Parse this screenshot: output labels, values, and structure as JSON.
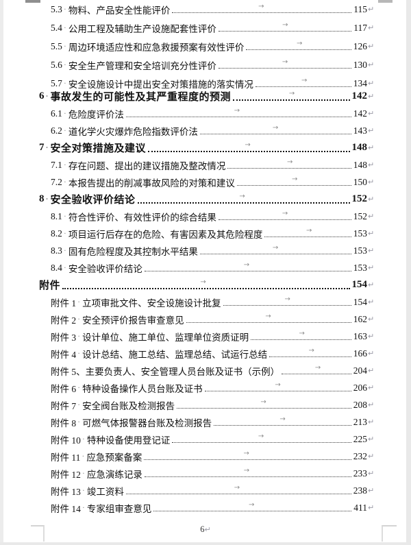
{
  "colors": {
    "text": "#111111",
    "formatting_marks": "#8c8c8c"
  },
  "marks": {
    "space_mark": "·",
    "tab_arrow": "→",
    "return_mark": "↵"
  },
  "footer": {
    "page_number": "6"
  },
  "toc": {
    "entries": [
      {
        "level": 2,
        "num": "5.3",
        "sep": true,
        "title": "物料、产品安全性能评价",
        "page": "115"
      },
      {
        "level": 2,
        "num": "5.4",
        "sep": true,
        "title": "公用工程及辅助生产设施配套性评价",
        "page": "117"
      },
      {
        "level": 2,
        "num": "5.5",
        "sep": true,
        "title": "周边环境适应性和应急救援预案有效性评价",
        "page": "126"
      },
      {
        "level": 2,
        "num": "5.6",
        "sep": true,
        "title": "安全生产管理和安全培训充分性评价",
        "page": "130"
      },
      {
        "level": 2,
        "num": "5.7",
        "sep": true,
        "title": "安全设施设计中提出安全对策措施的落实情况",
        "page": "134"
      },
      {
        "level": 1,
        "num": "6",
        "sep": true,
        "title": "事故发生的可能性及其严重程度的预测",
        "page": "142"
      },
      {
        "level": 2,
        "num": "6.1",
        "sep": true,
        "title": "危险度评价法",
        "page": "142"
      },
      {
        "level": 2,
        "num": "6.2",
        "sep": true,
        "title": "道化学火灾爆炸危险指数评价法",
        "page": "143"
      },
      {
        "level": 1,
        "num": "7",
        "sep": true,
        "title": "安全对策措施及建议",
        "page": "148"
      },
      {
        "level": 2,
        "num": "7.1",
        "sep": true,
        "title": "存在问题、提出的建议措施及整改情况",
        "page": "148"
      },
      {
        "level": 2,
        "num": "7.2",
        "sep": true,
        "title": "本报告提出的削减事故风险的对策和建议",
        "page": "150"
      },
      {
        "level": 1,
        "num": "8",
        "sep": true,
        "title": "安全验收评价结论",
        "page": "152"
      },
      {
        "level": 2,
        "num": "8.1",
        "sep": true,
        "title": "符合性评价、有效性评价的综合结果",
        "page": "152"
      },
      {
        "level": 2,
        "num": "8.2",
        "sep": true,
        "title": "项目运行后存在的危险、有害因素及其危险程度",
        "page": "153"
      },
      {
        "level": 2,
        "num": "8.3",
        "sep": true,
        "title": "固有危险程度及其控制水平结果",
        "page": "153"
      },
      {
        "level": 2,
        "num": "8.4",
        "sep": true,
        "title": "安全验收评价结论",
        "page": "153"
      },
      {
        "level": 1,
        "num": "",
        "sep": false,
        "title": "附件",
        "page": "154"
      },
      {
        "level": 2,
        "num": "附件 1",
        "sep": true,
        "title": "立项审批文件、安全设施设计批复",
        "page": "154"
      },
      {
        "level": 2,
        "num": "附件 2",
        "sep": true,
        "title": "安全预评价报告审查意见",
        "page": "162"
      },
      {
        "level": 2,
        "num": "附件 3",
        "sep": true,
        "title": "设计单位、施工单位、监理单位资质证明",
        "page": "163"
      },
      {
        "level": 2,
        "num": "附件 4",
        "sep": true,
        "title": "设计总结、施工总结、监理总结、试运行总结",
        "page": "166"
      },
      {
        "level": 2,
        "num": "附件 5",
        "sep": false,
        "title": "、主要负责人、安全管理人员台账及证书（示例）",
        "page": "204"
      },
      {
        "level": 2,
        "num": "附件 6",
        "sep": true,
        "title": "特种设备操作人员台账及证书",
        "page": "206"
      },
      {
        "level": 2,
        "num": "附件 7",
        "sep": true,
        "title": "安全阀台账及检测报告",
        "page": "208"
      },
      {
        "level": 2,
        "num": "附件 8",
        "sep": true,
        "title": "可燃气体报警器台账及检测报告",
        "page": "213"
      },
      {
        "level": 2,
        "num": "附件 10",
        "sep": true,
        "title": "特种设备使用登记证",
        "page": "225"
      },
      {
        "level": 2,
        "num": "附件 11",
        "sep": true,
        "title": "应急预案备案",
        "page": "232"
      },
      {
        "level": 2,
        "num": "附件 12",
        "sep": true,
        "title": "应急演练记录",
        "page": "233"
      },
      {
        "level": 2,
        "num": "附件 13",
        "sep": true,
        "title": "竣工资料",
        "page": "238"
      },
      {
        "level": 2,
        "num": "附件 14",
        "sep": true,
        "title": "专家组审查意见",
        "page": "411"
      }
    ]
  }
}
